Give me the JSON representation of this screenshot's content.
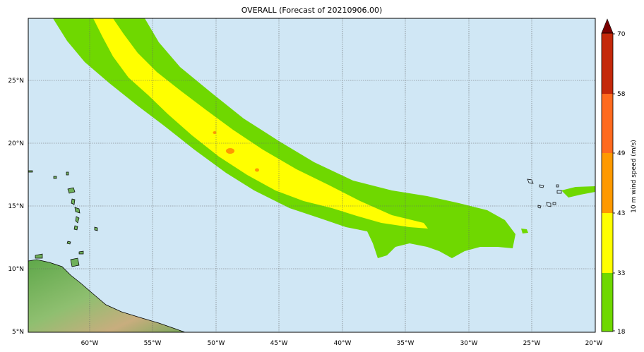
{
  "title": "OVERALL (Forecast of 20210906.00)",
  "map": {
    "ocean_color": "#d0e7f5",
    "x_ticks": [
      "60°W",
      "55°W",
      "50°W",
      "45°W",
      "40°W",
      "35°W",
      "30°W",
      "25°W",
      "20°W"
    ],
    "y_ticks": [
      "25°N",
      "20°N",
      "15°N",
      "10°N",
      "5°N"
    ],
    "grid": true
  },
  "colorbar": {
    "label": "10 m wind speed (m/s)",
    "ticks": [
      "70",
      "58",
      "49",
      "43",
      "33",
      "18"
    ],
    "colors": [
      "#7a0000",
      "#c4280a",
      "#ff6a1e",
      "#ff9900",
      "#ffff00",
      "#6fd800"
    ]
  }
}
